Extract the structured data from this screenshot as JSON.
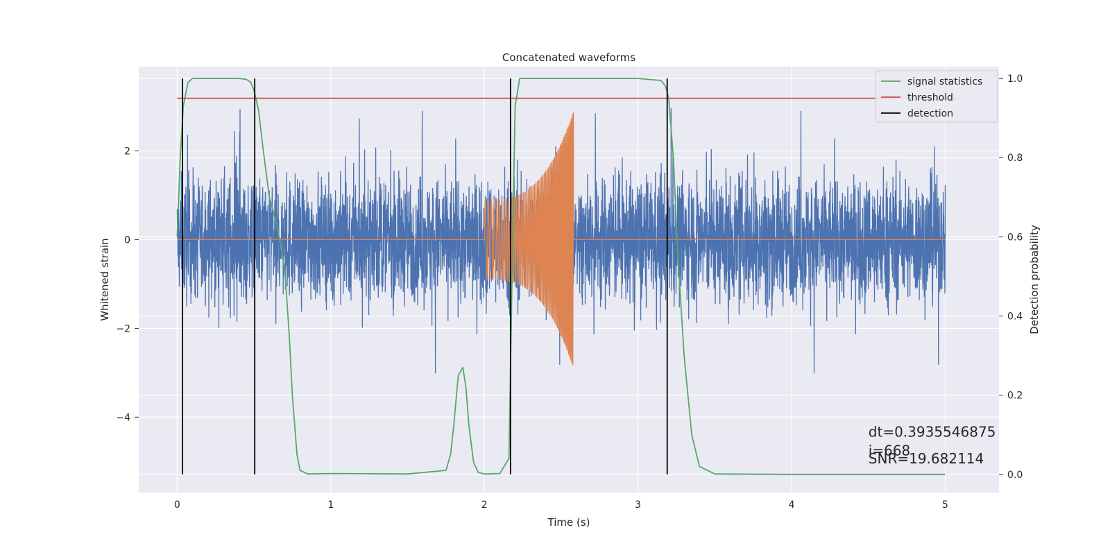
{
  "chart_data": {
    "type": "line",
    "title": "Concatenated waveforms",
    "xlabel": "Time (s)",
    "ylabel": "Whitened strain",
    "y2label": "Detection probability",
    "xlim": [
      -0.25,
      5.35
    ],
    "ylim": [
      -5.7,
      3.9
    ],
    "y2lim": [
      -0.046,
      1.03
    ],
    "xticks": [
      0,
      1,
      2,
      3,
      4,
      5
    ],
    "yticks": [
      -4,
      -2,
      0,
      2
    ],
    "y2ticks": [
      0.0,
      0.2,
      0.4,
      0.6,
      0.8,
      1.0
    ],
    "grid": true,
    "legend_position": "top-right",
    "legend": [
      "signal statistics",
      "threshold",
      "detection"
    ],
    "colors": {
      "background": "#eaeaf2",
      "grid": "#ffffff",
      "noise": "#4c72b0",
      "template": "#dd8452",
      "signal_statistics": "#55a868",
      "threshold": "#c44e52",
      "detection": "#000000"
    },
    "noise_amplitude_typical": 1.5,
    "noise_amplitude_max": 3.4,
    "template": {
      "start": 2.0,
      "end": 2.58,
      "start_amplitude": 0.9,
      "end_amplitude": 2.9
    },
    "signal_statistics": {
      "x": [
        0.0,
        0.02,
        0.04,
        0.07,
        0.1,
        0.15,
        0.2,
        0.3,
        0.4,
        0.45,
        0.48,
        0.5,
        0.53,
        0.56,
        0.6,
        0.65,
        0.7,
        0.73,
        0.75,
        0.78,
        0.8,
        0.85,
        1.0,
        1.5,
        1.75,
        1.78,
        1.8,
        1.83,
        1.86,
        1.88,
        1.9,
        1.93,
        1.96,
        2.0,
        2.1,
        2.16,
        2.18,
        2.2,
        2.23,
        2.3,
        3.0,
        3.15,
        3.18,
        3.2,
        3.23,
        3.26,
        3.3,
        3.35,
        3.4,
        3.5,
        4.0,
        4.5,
        5.0
      ],
      "y": [
        0.6,
        0.8,
        0.93,
        0.99,
        1.0,
        1.0,
        1.0,
        1.0,
        1.0,
        0.998,
        0.99,
        0.97,
        0.92,
        0.82,
        0.7,
        0.63,
        0.52,
        0.35,
        0.2,
        0.05,
        0.01,
        0.001,
        0.002,
        0.001,
        0.01,
        0.05,
        0.12,
        0.25,
        0.27,
        0.22,
        0.12,
        0.03,
        0.005,
        0.001,
        0.002,
        0.04,
        0.5,
        0.93,
        1.0,
        1.0,
        1.0,
        0.995,
        0.98,
        0.95,
        0.8,
        0.55,
        0.3,
        0.1,
        0.02,
        0.001,
        0.0,
        0.0,
        0.0
      ]
    },
    "threshold": {
      "y": 0.95,
      "x_range": [
        0,
        5.1
      ]
    },
    "detections": [
      0.035,
      0.505,
      2.17,
      3.19
    ],
    "annotations": [
      "dt=0.3935546875",
      " i=668",
      "SNR=19.682114"
    ],
    "annotation_position": {
      "x": 4.5,
      "y": [
        0.095,
        0.048,
        0.028
      ]
    }
  }
}
